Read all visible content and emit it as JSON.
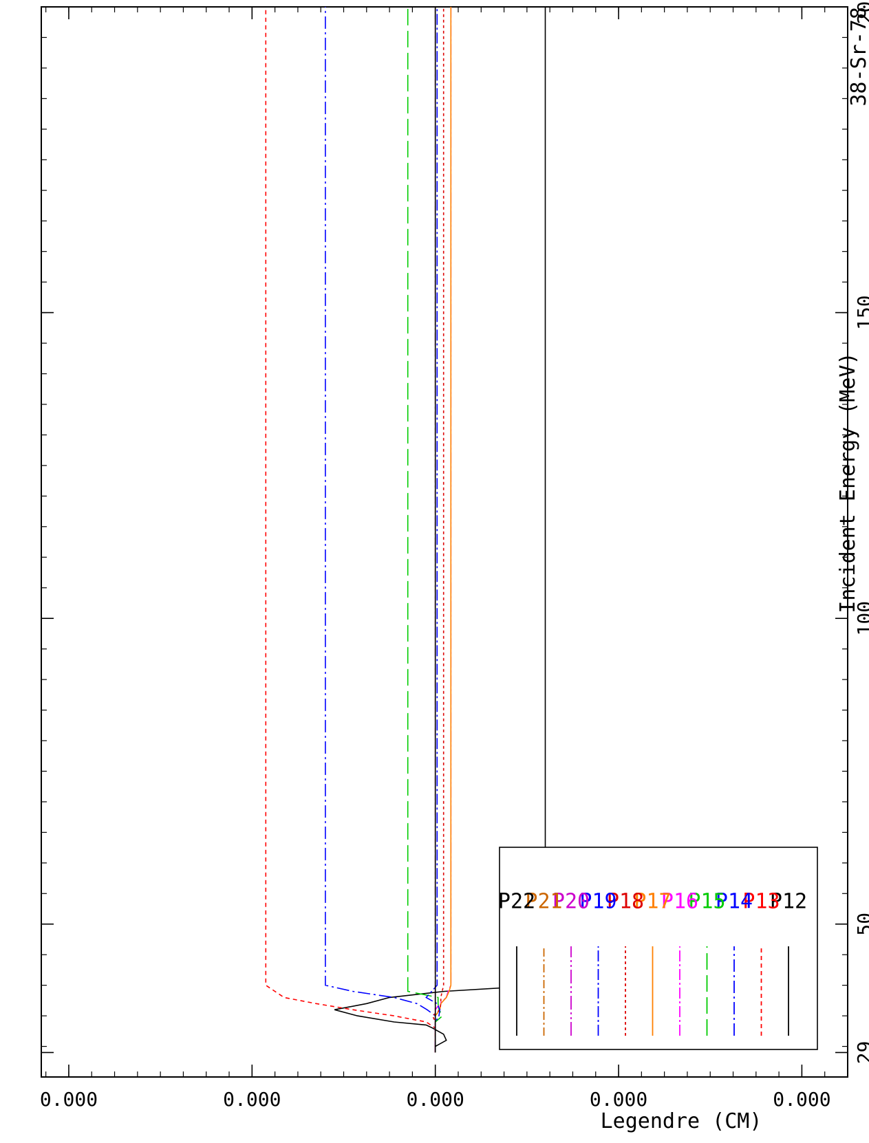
{
  "chart_data": {
    "type": "line",
    "title": "",
    "xlabel": "Incident Energy (MeV)",
    "ylabel": "Legendre (CM)",
    "corner_label": "38-Sr-78",
    "x_ticks": [
      {
        "value": 29,
        "label": "29"
      },
      {
        "value": 50,
        "label": "50"
      },
      {
        "value": 100,
        "label": "100"
      },
      {
        "value": 150,
        "label": "150"
      },
      {
        "value": 200,
        "label": "200"
      }
    ],
    "y_ticks": [
      {
        "value": -6e-05,
        "label": "0.000"
      },
      {
        "value": -4e-05,
        "label": "0.000"
      },
      {
        "value": -2e-05,
        "label": "0.000"
      },
      {
        "value": 0.0,
        "label": "0.000"
      },
      {
        "value": 2e-05,
        "label": "0.000"
      },
      {
        "value": 4e-05,
        "label": "0.000"
      },
      {
        "value": 6e-05,
        "label": "0.000"
      }
    ],
    "xlim": [
      25,
      200
    ],
    "ylim": [
      -4.5e-05,
      4.3e-05
    ],
    "grid": false,
    "legend_position": "bottom-left",
    "series": [
      {
        "name": "P12",
        "color": "#000000",
        "dash": "",
        "x": [
          29,
          30,
          31,
          32,
          33,
          33.5,
          34,
          35,
          36,
          37,
          38,
          39,
          40,
          200
        ],
        "y": [
          0,
          0,
          -1.2e-06,
          -9e-07,
          3e-07,
          1e-06,
          4.5e-06,
          8.5e-06,
          1.1e-05,
          7.5e-06,
          5e-06,
          -1e-06,
          -1.2e-05,
          -1.2e-05
        ]
      },
      {
        "name": "P13",
        "color": "#ff0000",
        "dash": "6,5",
        "x": [
          29,
          33,
          34,
          35,
          36,
          37,
          38,
          39,
          40,
          200
        ],
        "y": [
          0,
          0,
          1e-06,
          4.5e-06,
          9e-06,
          1.3e-05,
          1.65e-05,
          1.75e-05,
          1.85e-05,
          1.85e-05
        ]
      },
      {
        "name": "P14",
        "color": "#0000ff",
        "dash": "18,5,3,5",
        "x": [
          29,
          35,
          36,
          37,
          38,
          39,
          40,
          200
        ],
        "y": [
          0,
          0,
          9e-07,
          2e-06,
          4.5e-06,
          9e-06,
          1.2e-05,
          1.2e-05
        ]
      },
      {
        "name": "P15",
        "color": "#00cc00",
        "dash": "24,8",
        "x": [
          29,
          34,
          35,
          36,
          37,
          38,
          39,
          40,
          200
        ],
        "y": [
          0,
          0,
          -8e-07,
          -4e-07,
          -3e-07,
          -3e-07,
          3e-06,
          3e-06,
          3e-06
        ]
      },
      {
        "name": "P16",
        "color": "#ff00ff",
        "dash": "16,4,3,4",
        "x": [
          29,
          36,
          37,
          38,
          39,
          40,
          200
        ],
        "y": [
          0,
          0,
          -5e-07,
          -1.2e-06,
          -1.4e-06,
          -1.7e-06,
          -1.7e-06
        ]
      },
      {
        "name": "P17",
        "color": "#ff8000",
        "dash": "",
        "x": [
          29,
          35,
          36,
          37,
          38,
          39,
          40,
          200
        ],
        "y": [
          0,
          0,
          -5e-07,
          -6e-07,
          -1.2e-06,
          -1.5e-06,
          -1.7e-06,
          -1.7e-06
        ]
      },
      {
        "name": "P18",
        "color": "#dd0000",
        "dash": "4,4",
        "x": [
          29,
          34,
          35,
          36,
          37,
          38,
          40,
          200
        ],
        "y": [
          0,
          0,
          3e-07,
          -5e-07,
          -6e-07,
          -6e-07,
          -9e-07,
          -9e-07
        ]
      },
      {
        "name": "P19",
        "color": "#0000ff",
        "dash": "16,4,3,4",
        "x": [
          29,
          34,
          35,
          36,
          37,
          38,
          39,
          40,
          200
        ],
        "y": [
          0,
          0,
          -4e-07,
          -5e-07,
          -2e-07,
          1e-06,
          4e-07,
          -2e-07,
          -2e-07
        ]
      },
      {
        "name": "P20",
        "color": "#cc00cc",
        "dash": "20,4,3,4,3,4",
        "x": [
          29,
          200
        ],
        "y": [
          0,
          0
        ]
      },
      {
        "name": "P21",
        "color": "#cc6600",
        "dash": "12,4,3,4",
        "x": [
          29,
          200
        ],
        "y": [
          0,
          0
        ]
      },
      {
        "name": "P22",
        "color": "#000000",
        "dash": "",
        "x": [
          29,
          200
        ],
        "y": [
          0,
          0
        ]
      }
    ]
  }
}
